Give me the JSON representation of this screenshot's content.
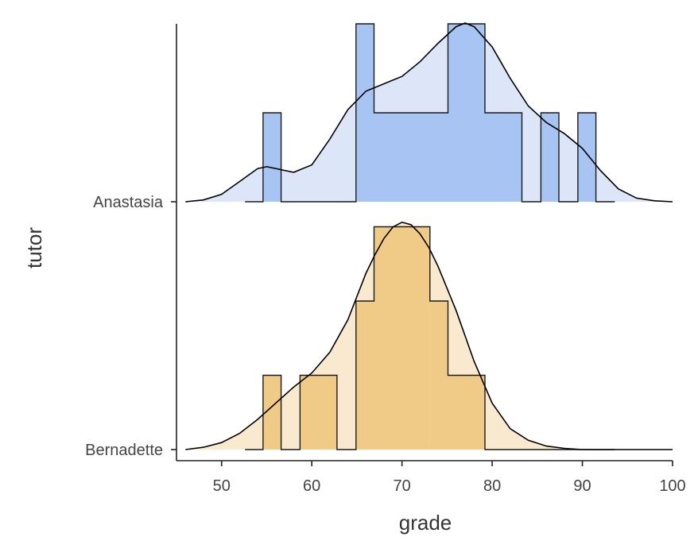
{
  "chart_data": {
    "type": "ridgeline-histogram-density",
    "xlabel": "grade",
    "ylabel": "tutor",
    "xlim": [
      45,
      100
    ],
    "xticks": [
      50,
      60,
      70,
      80,
      90,
      100
    ],
    "bin_width": 2.0,
    "series": [
      {
        "name": "Anastasia",
        "color_fill": "#a7c4f2",
        "color_density": "#dce6f8",
        "hist": [
          {
            "x0": 52.6,
            "x1": 54.6,
            "count": 0
          },
          {
            "x0": 54.6,
            "x1": 56.6,
            "count": 1
          },
          {
            "x0": 56.6,
            "x1": 64.9,
            "count": 0
          },
          {
            "x0": 64.9,
            "x1": 66.9,
            "count": 2
          },
          {
            "x0": 66.9,
            "x1": 75.1,
            "count": 1
          },
          {
            "x0": 75.1,
            "x1": 79.2,
            "count": 2
          },
          {
            "x0": 79.2,
            "x1": 83.3,
            "count": 1
          },
          {
            "x0": 83.3,
            "x1": 85.4,
            "count": 0
          },
          {
            "x0": 85.4,
            "x1": 87.4,
            "count": 1
          },
          {
            "x0": 87.4,
            "x1": 89.5,
            "count": 0
          },
          {
            "x0": 89.5,
            "x1": 91.5,
            "count": 1
          },
          {
            "x0": 91.5,
            "x1": 93.6,
            "count": 0
          }
        ],
        "density_x": [
          46,
          48,
          50,
          52,
          54,
          55,
          56,
          57,
          58,
          60,
          62,
          64,
          66,
          68,
          70,
          72,
          74,
          76,
          77,
          78,
          80,
          82,
          84,
          86,
          88,
          90,
          92,
          94,
          96,
          98,
          100
        ],
        "density_y": [
          0.0,
          0.01,
          0.04,
          0.11,
          0.18,
          0.19,
          0.18,
          0.17,
          0.16,
          0.2,
          0.34,
          0.5,
          0.6,
          0.64,
          0.68,
          0.76,
          0.86,
          0.95,
          0.97,
          0.95,
          0.84,
          0.67,
          0.52,
          0.43,
          0.37,
          0.29,
          0.17,
          0.07,
          0.02,
          0.005,
          0.0
        ]
      },
      {
        "name": "Bernadette",
        "color_fill": "#f0cb87",
        "color_density": "#f8e9cf",
        "hist": [
          {
            "x0": 52.6,
            "x1": 54.6,
            "count": 0
          },
          {
            "x0": 54.6,
            "x1": 56.6,
            "count": 1
          },
          {
            "x0": 56.6,
            "x1": 58.7,
            "count": 0
          },
          {
            "x0": 58.7,
            "x1": 62.8,
            "count": 1
          },
          {
            "x0": 62.8,
            "x1": 64.9,
            "count": 0
          },
          {
            "x0": 64.9,
            "x1": 66.9,
            "count": 2
          },
          {
            "x0": 66.9,
            "x1": 73.1,
            "count": 3
          },
          {
            "x0": 73.1,
            "x1": 75.1,
            "count": 2
          },
          {
            "x0": 75.1,
            "x1": 79.2,
            "count": 1
          },
          {
            "x0": 79.2,
            "x1": 93.6,
            "count": 0
          }
        ],
        "density_x": [
          46,
          48,
          50,
          52,
          54,
          56,
          58,
          60,
          62,
          64,
          66,
          67,
          68,
          69,
          70,
          71,
          72,
          73,
          74,
          76,
          78,
          80,
          82,
          84,
          86,
          88,
          90,
          95,
          100
        ],
        "density_y": [
          0.0,
          0.01,
          0.03,
          0.07,
          0.13,
          0.2,
          0.27,
          0.33,
          0.42,
          0.56,
          0.76,
          0.84,
          0.91,
          0.96,
          0.98,
          0.97,
          0.93,
          0.87,
          0.79,
          0.6,
          0.38,
          0.2,
          0.09,
          0.04,
          0.015,
          0.005,
          0.0,
          0.0,
          0.0
        ]
      }
    ]
  }
}
